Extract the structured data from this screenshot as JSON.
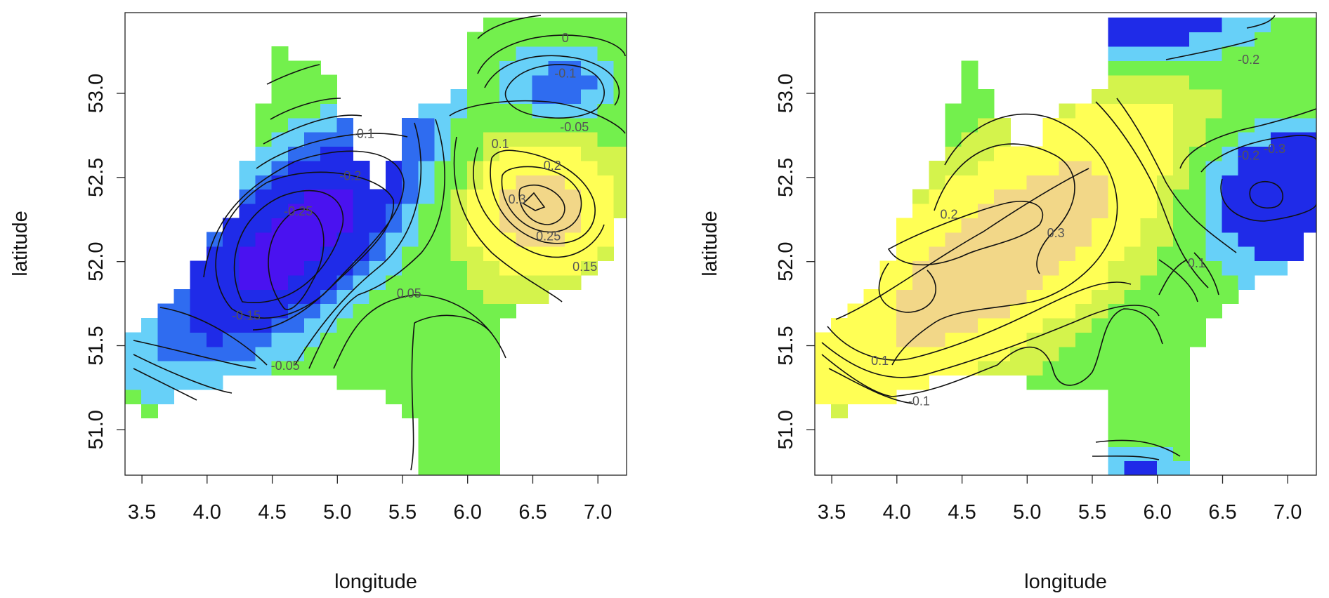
{
  "chart_data": [
    {
      "type": "heatmap",
      "title": "",
      "xlabel": "longitude",
      "ylabel": "latitude",
      "xlim": [
        3.37,
        7.22
      ],
      "ylim": [
        50.73,
        53.48
      ],
      "x_ticks": [
        3.5,
        4.0,
        4.5,
        5.0,
        5.5,
        6.0,
        6.5,
        7.0
      ],
      "x_tick_labels": [
        "3.5",
        "4.0",
        "4.5",
        "5.0",
        "5.5",
        "6.0",
        "6.5",
        "7.0"
      ],
      "y_ticks": [
        51.0,
        51.5,
        52.0,
        52.5,
        53.0
      ],
      "y_tick_labels": [
        "51.0",
        "51.5",
        "52.0",
        "52.5",
        "53.0"
      ],
      "grid": false,
      "colors": {
        "strong_negative": "#4a12f0",
        "negative": "#1f2be8",
        "mild_negative": "#2f6cf0",
        "weak_negative": "#67d0f8",
        "near_zero": "#73f04d",
        "weak_positive": "#d4f34c",
        "positive": "#ffff55",
        "strong_positive": "#f2d788"
      },
      "contour_labels": [
        {
          "text": "0",
          "lon": 6.75,
          "lat": 53.33
        },
        {
          "text": "-0.1",
          "lon": 6.75,
          "lat": 53.12
        },
        {
          "text": "-0.05",
          "lon": 6.82,
          "lat": 52.8
        },
        {
          "text": "-0.1",
          "lon": 5.2,
          "lat": 52.76
        },
        {
          "text": "0.1",
          "lon": 6.25,
          "lat": 52.7
        },
        {
          "text": "-0.2",
          "lon": 5.1,
          "lat": 52.51
        },
        {
          "text": "0.2",
          "lon": 6.65,
          "lat": 52.57
        },
        {
          "text": "-0.25",
          "lon": 4.7,
          "lat": 52.3
        },
        {
          "text": "0.3",
          "lon": 6.38,
          "lat": 52.37
        },
        {
          "text": "0.25",
          "lon": 6.62,
          "lat": 52.15
        },
        {
          "text": "0.15",
          "lon": 6.9,
          "lat": 51.97
        },
        {
          "text": "-0.15",
          "lon": 4.3,
          "lat": 51.68
        },
        {
          "text": "0.05",
          "lon": 5.55,
          "lat": 51.81
        },
        {
          "text": "-0.05",
          "lon": 4.6,
          "lat": 51.38
        }
      ]
    },
    {
      "type": "heatmap",
      "title": "",
      "xlabel": "longitude",
      "ylabel": "latitude",
      "xlim": [
        3.37,
        7.22
      ],
      "ylim": [
        50.73,
        53.48
      ],
      "x_ticks": [
        3.5,
        4.0,
        4.5,
        5.0,
        5.5,
        6.0,
        6.5,
        7.0
      ],
      "x_tick_labels": [
        "3.5",
        "4.0",
        "4.5",
        "5.0",
        "5.5",
        "6.0",
        "6.5",
        "7.0"
      ],
      "y_ticks": [
        51.0,
        51.5,
        52.0,
        52.5,
        53.0
      ],
      "y_tick_labels": [
        "51.0",
        "51.5",
        "52.0",
        "52.5",
        "53.0"
      ],
      "grid": false,
      "colors": {
        "negative": "#1f2be8",
        "weak_negative": "#67d0f8",
        "near_zero": "#73f04d",
        "weak_positive": "#d4f34c",
        "positive": "#ffff55",
        "strong_positive": "#f2d788"
      },
      "contour_labels": [
        {
          "text": "-0.2",
          "lon": 6.7,
          "lat": 53.2
        },
        {
          "text": "-0.2",
          "lon": 6.7,
          "lat": 52.63
        },
        {
          "text": "-0.3",
          "lon": 6.9,
          "lat": 52.67
        },
        {
          "text": "0.2",
          "lon": 4.4,
          "lat": 52.28
        },
        {
          "text": "0.3",
          "lon": 5.22,
          "lat": 52.17
        },
        {
          "text": "0.1",
          "lon": 6.3,
          "lat": 51.99
        },
        {
          "text": "0.1",
          "lon": 3.87,
          "lat": 51.41
        },
        {
          "text": "-0.1",
          "lon": 4.17,
          "lat": 51.17
        }
      ]
    }
  ]
}
